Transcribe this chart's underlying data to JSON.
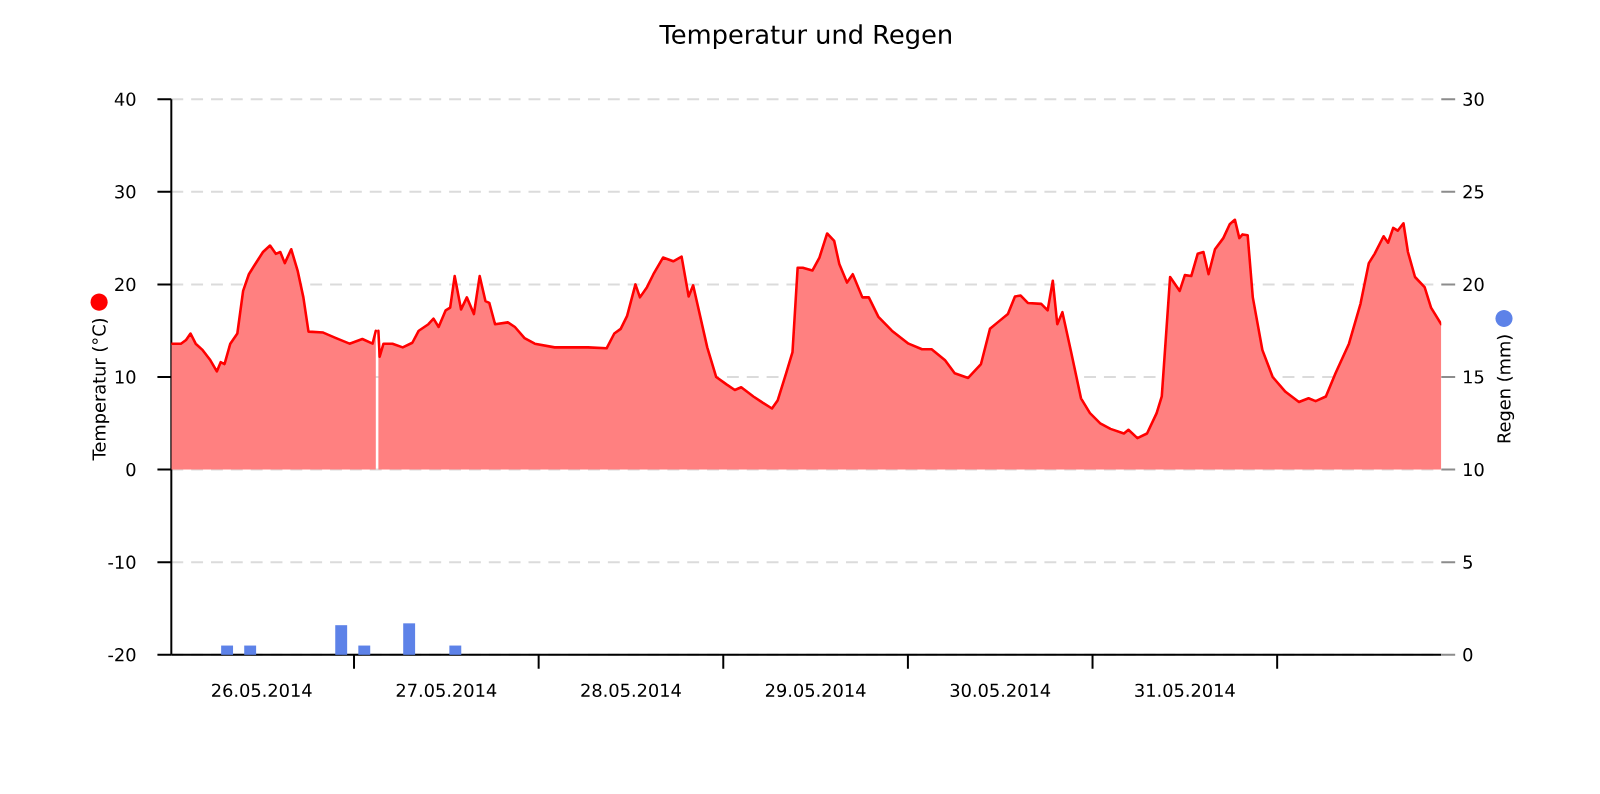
{
  "chart_data": {
    "type": "area",
    "title": "Temperatur und Regen",
    "ylabel": "Temperatur (°C)",
    "y2label": "Regen (mm)",
    "xlim": [
      "2014-05-26T00:15",
      "2014-06-01T21:20"
    ],
    "xticks": [
      {
        "value": "2014-05-26T12:00",
        "label": "26.05.2014"
      },
      {
        "value": "2014-05-27T00:00",
        "label": null
      },
      {
        "value": "2014-05-27T12:00",
        "label": "27.05.2014"
      },
      {
        "value": "2014-05-28T00:00",
        "label": null
      },
      {
        "value": "2014-05-28T12:00",
        "label": "28.05.2014"
      },
      {
        "value": "2014-05-29T00:00",
        "label": null
      },
      {
        "value": "2014-05-29T12:00",
        "label": "29.05.2014"
      },
      {
        "value": "2014-05-30T00:00",
        "label": null
      },
      {
        "value": "2014-05-30T12:00",
        "label": "30.05.2014"
      },
      {
        "value": "2014-05-31T00:00",
        "label": null
      },
      {
        "value": "2014-05-31T12:00",
        "label": "31.05.2014"
      },
      {
        "value": "2014-06-01T00:00",
        "label": null
      }
    ],
    "ylim": [
      -20,
      40
    ],
    "yticks": [
      -20,
      -10,
      0,
      10,
      20,
      30,
      40
    ],
    "y2lim": [
      0,
      30
    ],
    "y2ticks": [
      0,
      5,
      10,
      15,
      20,
      25,
      30
    ],
    "grid": "y",
    "series": [
      {
        "color": "#ff0000",
        "x": [
          "2014-05-26T00:15",
          "2014-05-26T01:30",
          "2014-05-26T02:10",
          "2014-05-26T02:45",
          "2014-05-26T03:25",
          "2014-05-26T04:20",
          "2014-05-26T05:20",
          "2014-05-26T06:10",
          "2014-05-26T06:40",
          "2014-05-26T07:10",
          "2014-05-26T07:55",
          "2014-05-26T08:50",
          "2014-05-26T09:35",
          "2014-05-26T10:20",
          "2014-05-26T11:10",
          "2014-05-26T12:10",
          "2014-05-26T13:05",
          "2014-05-26T13:50",
          "2014-05-26T14:25",
          "2014-05-26T15:00",
          "2014-05-26T15:50",
          "2014-05-26T16:40",
          "2014-05-26T17:25",
          "2014-05-26T18:05",
          "2014-05-26T20:00",
          "2014-05-26T21:40",
          "2014-05-26T23:25",
          "2014-05-27T01:05",
          "2014-05-27T02:25",
          "2014-05-27T02:50",
          "2014-05-27T03:00",
          "2014-05-27T03:10",
          "2014-05-27T03:20",
          "2014-05-27T03:50",
          "2014-05-27T05:00",
          "2014-05-27T06:20",
          "2014-05-27T07:35",
          "2014-05-27T08:25",
          "2014-05-27T09:40",
          "2014-05-27T10:20",
          "2014-05-27T11:00",
          "2014-05-27T11:55",
          "2014-05-27T12:30",
          "2014-05-27T13:05",
          "2014-05-27T13:55",
          "2014-05-27T14:40",
          "2014-05-27T15:35",
          "2014-05-27T16:20",
          "2014-05-27T17:05",
          "2014-05-27T17:35",
          "2014-05-27T18:20",
          "2014-05-27T20:00",
          "2014-05-27T20:55",
          "2014-05-27T22:10",
          "2014-05-27T23:30",
          "2014-05-28T02:05",
          "2014-05-28T06:25",
          "2014-05-28T08:50",
          "2014-05-28T09:50",
          "2014-05-28T10:40",
          "2014-05-28T11:30",
          "2014-05-28T12:35",
          "2014-05-28T13:10",
          "2014-05-28T14:05",
          "2014-05-28T14:55",
          "2014-05-28T16:10",
          "2014-05-28T17:30",
          "2014-05-28T18:35",
          "2014-05-28T19:30",
          "2014-05-28T20:05",
          "2014-05-28T21:55",
          "2014-05-28T23:05",
          "2014-05-29T00:25",
          "2014-05-29T01:30",
          "2014-05-29T02:20",
          "2014-05-29T03:55",
          "2014-05-29T05:10",
          "2014-05-29T06:20",
          "2014-05-29T07:05",
          "2014-05-29T08:10",
          "2014-05-29T09:00",
          "2014-05-29T09:40",
          "2014-05-29T10:20",
          "2014-05-29T11:35",
          "2014-05-29T12:30",
          "2014-05-29T13:30",
          "2014-05-29T14:25",
          "2014-05-29T15:05",
          "2014-05-29T16:05",
          "2014-05-29T16:50",
          "2014-05-29T18:05",
          "2014-05-29T18:55",
          "2014-05-29T20:10",
          "2014-05-29T21:55",
          "2014-05-30T00:05",
          "2014-05-30T01:50",
          "2014-05-30T03:05",
          "2014-05-30T04:50",
          "2014-05-30T06:05",
          "2014-05-30T07:50",
          "2014-05-30T09:30",
          "2014-05-30T10:40",
          "2014-05-30T11:40",
          "2014-05-30T13:00",
          "2014-05-30T13:55",
          "2014-05-30T14:40",
          "2014-05-30T15:35",
          "2014-05-30T17:20",
          "2014-05-30T18:10",
          "2014-05-30T18:50",
          "2014-05-30T19:25",
          "2014-05-30T20:05",
          "2014-05-30T21:10",
          "2014-05-30T22:30",
          "2014-05-30T23:40",
          "2014-05-31T01:00",
          "2014-05-31T02:20",
          "2014-05-31T04:05",
          "2014-05-31T04:40",
          "2014-05-31T05:50",
          "2014-05-31T07:05",
          "2014-05-31T08:20",
          "2014-05-31T09:00",
          "2014-05-31T10:05",
          "2014-05-31T11:20",
          "2014-05-31T12:00",
          "2014-05-31T12:50",
          "2014-05-31T13:40",
          "2014-05-31T14:25",
          "2014-05-31T15:05",
          "2014-05-31T15:55",
          "2014-05-31T17:00",
          "2014-05-31T17:50",
          "2014-05-31T18:30",
          "2014-05-31T19:05",
          "2014-05-31T19:30",
          "2014-05-31T20:10",
          "2014-05-31T20:50",
          "2014-05-31T22:05",
          "2014-05-31T23:25",
          "2014-06-01T01:05",
          "2014-06-01T02:50",
          "2014-06-01T04:05",
          "2014-06-01T05:00",
          "2014-06-01T06:20",
          "2014-06-01T07:35",
          "2014-06-01T09:20",
          "2014-06-01T10:50",
          "2014-06-01T11:55",
          "2014-06-01T12:40",
          "2014-06-01T13:50",
          "2014-06-01T14:25",
          "2014-06-01T15:05",
          "2014-06-01T15:40",
          "2014-06-01T16:25",
          "2014-06-01T17:00",
          "2014-06-01T17:55",
          "2014-06-01T19:10",
          "2014-06-01T20:00",
          "2014-06-01T21:20"
        ],
        "values": [
          13.6,
          13.6,
          14.0,
          14.7,
          13.6,
          12.9,
          11.8,
          10.6,
          11.6,
          11.4,
          13.6,
          14.7,
          19.3,
          21.1,
          22.2,
          23.5,
          24.2,
          23.3,
          23.5,
          22.3,
          23.8,
          21.5,
          18.6,
          14.9,
          14.8,
          14.2,
          13.6,
          14.1,
          13.6,
          15.0,
          null,
          15.0,
          12.2,
          13.6,
          13.6,
          13.2,
          13.7,
          15.0,
          15.7,
          16.3,
          15.4,
          17.2,
          17.5,
          20.9,
          17.3,
          18.6,
          16.8,
          20.9,
          18.2,
          18.0,
          15.7,
          15.9,
          15.4,
          14.2,
          13.6,
          13.2,
          13.2,
          13.1,
          14.7,
          15.2,
          16.6,
          20.0,
          18.6,
          19.7,
          21.1,
          22.9,
          22.5,
          23.0,
          18.7,
          19.9,
          13.2,
          10.0,
          9.2,
          8.6,
          8.9,
          7.9,
          7.2,
          6.6,
          7.5,
          10.4,
          12.7,
          21.8,
          21.8,
          21.5,
          22.9,
          25.5,
          24.7,
          22.2,
          20.2,
          21.1,
          18.6,
          18.6,
          16.5,
          15.0,
          13.6,
          13.0,
          13.0,
          11.8,
          10.4,
          9.9,
          11.4,
          15.2,
          15.9,
          16.8,
          18.7,
          18.8,
          18.0,
          17.9,
          17.2,
          20.4,
          15.7,
          17.0,
          12.9,
          7.7,
          6.1,
          5.0,
          4.4,
          3.9,
          4.3,
          3.4,
          3.9,
          6.1,
          7.9,
          20.8,
          19.3,
          21.0,
          20.9,
          23.3,
          23.5,
          21.1,
          23.8,
          25.0,
          26.5,
          27.0,
          25.0,
          25.4,
          25.3,
          18.6,
          12.9,
          10.0,
          8.4,
          7.3,
          7.7,
          7.4,
          7.9,
          10.4,
          13.6,
          17.9,
          22.3,
          23.3,
          25.2,
          24.5,
          26.1,
          25.8,
          26.6,
          23.5,
          20.8,
          19.7,
          17.5,
          15.7
        ]
      },
      {
        "type": "bar",
        "axis": "y2",
        "color": "#5d82e8",
        "x": [
          "2014-05-26T07:30",
          "2014-05-26T10:30",
          "2014-05-26T22:20",
          "2014-05-27T01:20",
          "2014-05-27T07:10",
          "2014-05-27T13:10"
        ],
        "values": [
          0.5,
          0.5,
          1.6,
          0.5,
          1.7,
          0.5
        ]
      }
    ]
  }
}
